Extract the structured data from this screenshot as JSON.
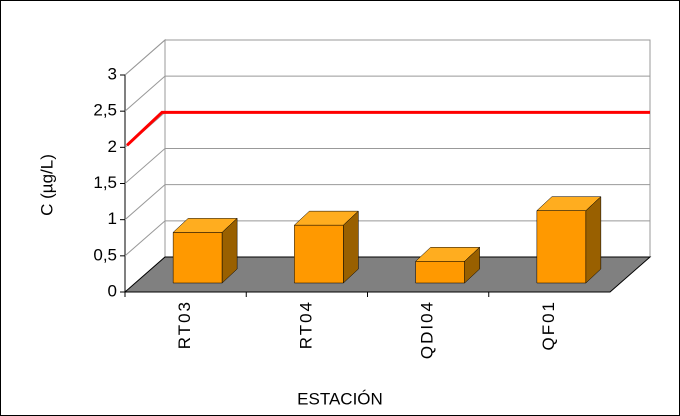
{
  "chart_data": {
    "type": "bar",
    "x_label": "ESTACIÓN",
    "y_label": "C (µg/L)",
    "categories": [
      "RT03",
      "RT04",
      "QDI04",
      "QF01"
    ],
    "values": [
      0.7,
      0.8,
      0.3,
      1.0
    ],
    "color": "#ff9900",
    "ylim": [
      0,
      3
    ],
    "yticks": [
      0,
      {
        "value": 0.5,
        "label": "0,5"
      },
      1,
      {
        "value": 1.5,
        "label": "1,5"
      },
      2,
      {
        "value": 2.5,
        "label": "2,5"
      },
      3
    ],
    "grid": true,
    "reference_line": {
      "value": 2,
      "color": "#ff0000"
    }
  }
}
